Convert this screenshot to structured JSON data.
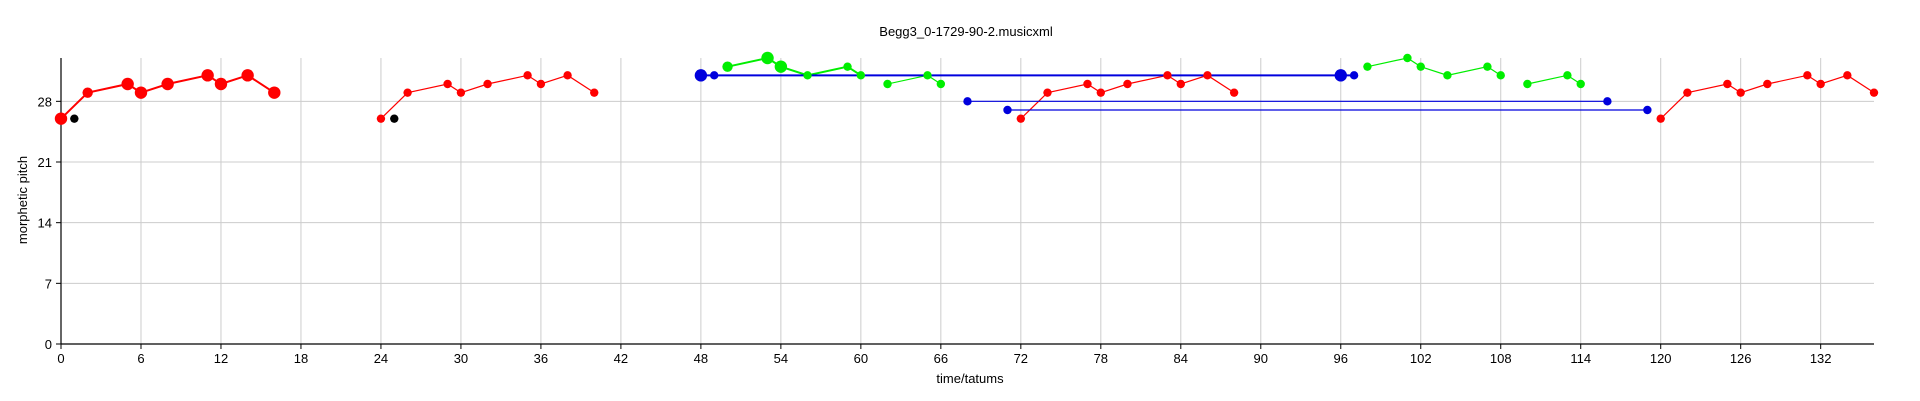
{
  "chart_data": {
    "type": "scatter",
    "title": "Begg3_0-1729-90-2.musicxml",
    "xlabel": "time/tatums",
    "ylabel": "morphetic pitch",
    "xlim": [
      0,
      136
    ],
    "ylim": [
      0,
      33
    ],
    "xticks": [
      0,
      6,
      12,
      18,
      24,
      30,
      36,
      42,
      48,
      54,
      60,
      66,
      72,
      78,
      84,
      90,
      96,
      102,
      108,
      114,
      120,
      126,
      132
    ],
    "yticks": [
      0,
      7,
      14,
      21,
      28
    ],
    "grid": true,
    "colors": {
      "red": "#ff0000",
      "green": "#00ee00",
      "blue": "#0000dd",
      "black": "#000000",
      "grid": "#cccccc"
    },
    "series": [
      {
        "color": "red",
        "line": true,
        "points": [
          [
            0,
            26,
            "l"
          ],
          [
            2,
            29,
            "m"
          ],
          [
            5,
            30,
            "l"
          ],
          [
            6,
            29,
            "l"
          ],
          [
            8,
            30,
            "l"
          ],
          [
            11,
            31,
            "l"
          ],
          [
            12,
            30,
            "l"
          ],
          [
            14,
            31,
            "l"
          ],
          [
            16,
            29,
            "l"
          ]
        ]
      },
      {
        "color": "black",
        "line": false,
        "points": [
          [
            1,
            26,
            "s"
          ],
          [
            25,
            26,
            "s"
          ]
        ]
      },
      {
        "color": "red",
        "line": true,
        "points": [
          [
            24,
            26,
            "s"
          ],
          [
            26,
            29,
            "s"
          ],
          [
            29,
            30,
            "s"
          ],
          [
            30,
            29,
            "s"
          ],
          [
            32,
            30,
            "s"
          ],
          [
            35,
            31,
            "s"
          ],
          [
            36,
            30,
            "s"
          ],
          [
            38,
            31,
            "s"
          ],
          [
            40,
            29,
            "s"
          ]
        ]
      },
      {
        "color": "green",
        "line": true,
        "points": [
          [
            50,
            32,
            "m"
          ],
          [
            53,
            33,
            "l"
          ],
          [
            54,
            32,
            "l"
          ],
          [
            56,
            31,
            "s"
          ],
          [
            59,
            32,
            "s"
          ],
          [
            60,
            31,
            "s"
          ]
        ]
      },
      {
        "color": "green",
        "line": true,
        "points": [
          [
            62,
            30,
            "s"
          ],
          [
            65,
            31,
            "s"
          ],
          [
            66,
            30,
            "s"
          ]
        ]
      },
      {
        "color": "green",
        "line": true,
        "points": [
          [
            98,
            32,
            "s"
          ],
          [
            101,
            33,
            "s"
          ],
          [
            102,
            32,
            "s"
          ],
          [
            104,
            31,
            "s"
          ],
          [
            107,
            32,
            "s"
          ],
          [
            108,
            31,
            "s"
          ]
        ]
      },
      {
        "color": "green",
        "line": true,
        "points": [
          [
            110,
            30,
            "s"
          ],
          [
            113,
            31,
            "s"
          ],
          [
            114,
            30,
            "s"
          ]
        ]
      },
      {
        "color": "red",
        "line": true,
        "points": [
          [
            72,
            26,
            "s"
          ],
          [
            74,
            29,
            "s"
          ],
          [
            77,
            30,
            "s"
          ],
          [
            78,
            29,
            "s"
          ],
          [
            80,
            30,
            "s"
          ],
          [
            83,
            31,
            "s"
          ],
          [
            84,
            30,
            "s"
          ],
          [
            86,
            31,
            "s"
          ],
          [
            88,
            29,
            "s"
          ]
        ]
      },
      {
        "color": "red",
        "line": true,
        "points": [
          [
            120,
            26,
            "s"
          ],
          [
            122,
            29,
            "s"
          ],
          [
            125,
            30,
            "s"
          ],
          [
            126,
            29,
            "s"
          ],
          [
            128,
            30,
            "s"
          ],
          [
            131,
            31,
            "s"
          ],
          [
            132,
            30,
            "s"
          ],
          [
            134,
            31,
            "s"
          ],
          [
            136,
            29,
            "s"
          ]
        ]
      },
      {
        "color": "blue",
        "line": true,
        "points": [
          [
            48,
            31,
            "l"
          ],
          [
            49,
            31,
            "s"
          ],
          [
            96,
            31,
            "l"
          ],
          [
            97,
            31,
            "s"
          ]
        ]
      },
      {
        "color": "blue",
        "line": true,
        "points": [
          [
            68,
            28,
            "s"
          ],
          [
            116,
            28,
            "s"
          ]
        ]
      },
      {
        "color": "blue",
        "line": true,
        "points": [
          [
            71,
            27,
            "s"
          ],
          [
            119,
            27,
            "s"
          ]
        ]
      }
    ]
  }
}
